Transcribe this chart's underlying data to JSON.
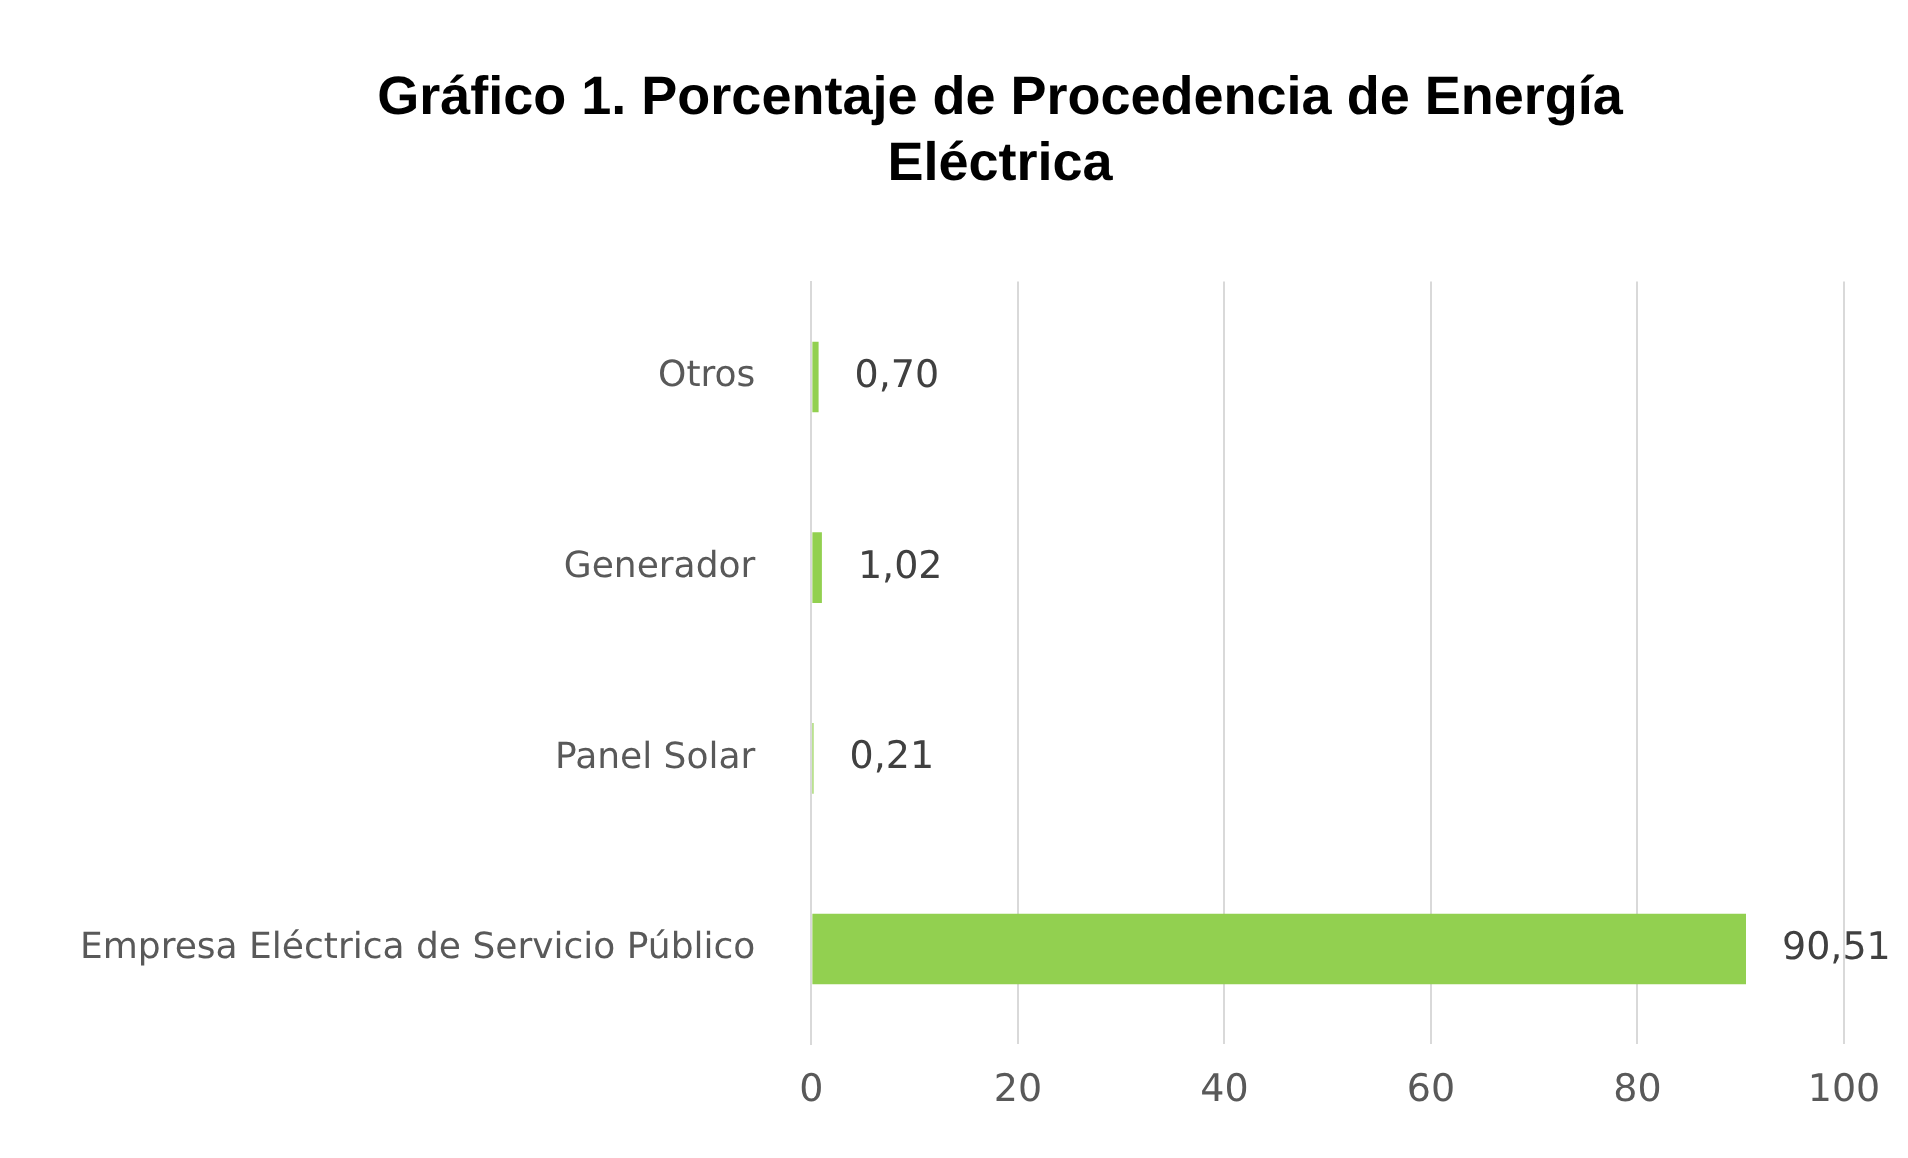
{
  "chart_data": {
    "type": "bar",
    "orientation": "horizontal",
    "title": "Gráfico 1. Porcentaje de Procedencia de Energía Eléctrica",
    "categories": [
      "Otros",
      "Generador",
      "Panel Solar",
      "Empresa Eléctrica de Servicio Público"
    ],
    "values": [
      0.7,
      1.02,
      0.21,
      90.51
    ],
    "value_labels": [
      "0,70",
      "1,02",
      "0,21",
      "90,51"
    ],
    "color": "#92d050",
    "xlim": [
      0,
      100
    ],
    "xticks": [
      0,
      20,
      40,
      60,
      80,
      100
    ],
    "grid": "x",
    "legend": false
  }
}
